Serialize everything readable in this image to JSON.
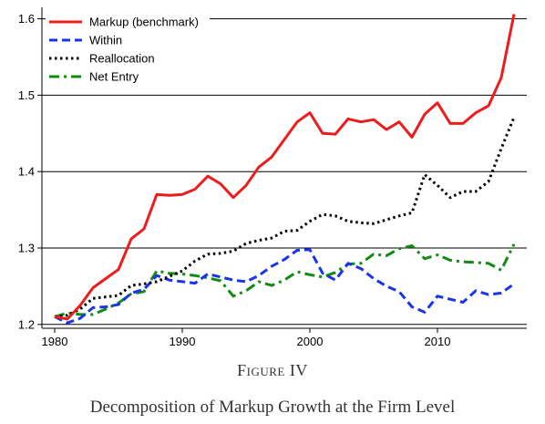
{
  "figure": {
    "number": "Figure IV",
    "caption": "Decomposition of Markup Growth at the Firm Level"
  },
  "chart_data": {
    "type": "line",
    "title": "",
    "xlabel": "",
    "ylabel": "",
    "xlim": [
      1979,
      2017
    ],
    "ylim": [
      1.195,
      1.615
    ],
    "x_ticks": [
      1980,
      1990,
      2000,
      2010
    ],
    "y_ticks": [
      1.2,
      1.3,
      1.4,
      1.5,
      1.6
    ],
    "x_tick_labels": [
      "1980",
      "1990",
      "2000",
      "2010"
    ],
    "y_tick_labels": [
      "1.2",
      "1.3",
      "1.4",
      "1.5",
      "1.6"
    ],
    "grid": "horizontal",
    "legend_position": "top-left",
    "x": [
      1980,
      1981,
      1982,
      1983,
      1984,
      1985,
      1986,
      1987,
      1988,
      1989,
      1990,
      1991,
      1992,
      1993,
      1994,
      1995,
      1996,
      1997,
      1998,
      1999,
      2000,
      2001,
      2002,
      2003,
      2004,
      2005,
      2006,
      2007,
      2008,
      2009,
      2010,
      2011,
      2012,
      2013,
      2014,
      2015,
      2016
    ],
    "series": [
      {
        "name": "Markup (benchmark)",
        "color": "#ee1c1c",
        "dash": "solid",
        "values": [
          1.21,
          1.207,
          1.225,
          1.248,
          1.26,
          1.272,
          1.312,
          1.325,
          1.37,
          1.369,
          1.37,
          1.377,
          1.394,
          1.384,
          1.366,
          1.382,
          1.406,
          1.419,
          1.442,
          1.465,
          1.477,
          1.45,
          1.449,
          1.469,
          1.465,
          1.468,
          1.455,
          1.465,
          1.445,
          1.475,
          1.49,
          1.463,
          1.463,
          1.477,
          1.486,
          1.523,
          1.606
        ]
      },
      {
        "name": "Within",
        "color": "#1a34e8",
        "dash": "dashed",
        "values": [
          1.21,
          1.202,
          1.208,
          1.222,
          1.223,
          1.226,
          1.241,
          1.246,
          1.264,
          1.258,
          1.256,
          1.254,
          1.266,
          1.262,
          1.258,
          1.256,
          1.264,
          1.276,
          1.285,
          1.297,
          1.298,
          1.267,
          1.258,
          1.28,
          1.273,
          1.26,
          1.25,
          1.243,
          1.223,
          1.216,
          1.237,
          1.233,
          1.229,
          1.244,
          1.239,
          1.241,
          1.253
        ]
      },
      {
        "name": "Reallocation",
        "color": "#000000",
        "dash": "dotted",
        "values": [
          1.21,
          1.212,
          1.22,
          1.234,
          1.236,
          1.238,
          1.251,
          1.253,
          1.256,
          1.263,
          1.27,
          1.283,
          1.292,
          1.293,
          1.296,
          1.306,
          1.31,
          1.313,
          1.322,
          1.323,
          1.335,
          1.344,
          1.342,
          1.335,
          1.333,
          1.332,
          1.337,
          1.342,
          1.346,
          1.396,
          1.382,
          1.366,
          1.374,
          1.374,
          1.387,
          1.43,
          1.471
        ]
      },
      {
        "name": "Net Entry",
        "color": "#138a13",
        "dash": "dashdot",
        "values": [
          1.21,
          1.215,
          1.213,
          1.213,
          1.22,
          1.228,
          1.24,
          1.243,
          1.27,
          1.267,
          1.266,
          1.264,
          1.261,
          1.257,
          1.237,
          1.244,
          1.256,
          1.251,
          1.258,
          1.269,
          1.265,
          1.262,
          1.268,
          1.279,
          1.28,
          1.292,
          1.29,
          1.299,
          1.303,
          1.286,
          1.291,
          1.284,
          1.282,
          1.281,
          1.28,
          1.271,
          1.305
        ]
      }
    ]
  }
}
